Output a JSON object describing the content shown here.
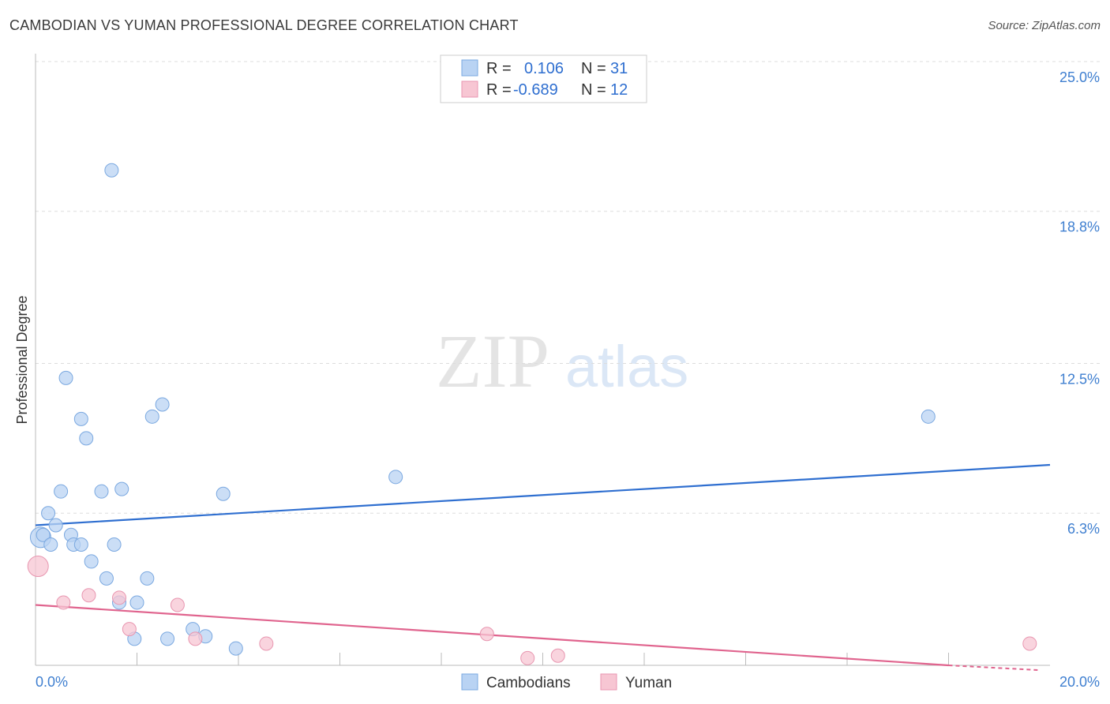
{
  "title": "CAMBODIAN VS YUMAN PROFESSIONAL DEGREE CORRELATION CHART",
  "source": "Source: ZipAtlas.com",
  "watermark": {
    "zip": "ZIP",
    "atlas": "atlas"
  },
  "colors": {
    "blue_fill": "#b9d3f3",
    "blue_stroke": "#7aa8e0",
    "blue_line": "#2f6fd0",
    "pink_fill": "#f7c6d3",
    "pink_stroke": "#e896b0",
    "pink_line": "#e0648e",
    "grid": "#dddddd",
    "tick_text": "#3f7fd0"
  },
  "legend": {
    "rows": [
      {
        "r_label": "R =",
        "r_value": "0.106",
        "n_label": "N =",
        "n_value": "31"
      },
      {
        "r_label": "R =",
        "r_value": "-0.689",
        "n_label": "N =",
        "n_value": "12"
      }
    ],
    "position": "top-center"
  },
  "bottom_legend": [
    "Cambodians",
    "Yuman"
  ],
  "chart_data": {
    "type": "scatter",
    "title": "CAMBODIAN VS YUMAN PROFESSIONAL DEGREE CORRELATION CHART",
    "xlabel": "",
    "ylabel": "Professional Degree",
    "xlim": [
      0,
      20
    ],
    "ylim": [
      0,
      25
    ],
    "x_tick_labels": [
      "0.0%",
      "20.0%"
    ],
    "y_ticks": [
      6.3,
      12.5,
      18.8,
      25.0
    ],
    "y_tick_labels": [
      "6.3%",
      "12.5%",
      "18.8%",
      "25.0%"
    ],
    "grid": true,
    "series": [
      {
        "name": "Cambodians",
        "color": "#b9d3f3",
        "points": [
          [
            1.5,
            20.5
          ],
          [
            0.6,
            11.9
          ],
          [
            0.9,
            10.2
          ],
          [
            1.0,
            9.4
          ],
          [
            2.5,
            10.8
          ],
          [
            2.3,
            10.3
          ],
          [
            0.5,
            7.2
          ],
          [
            1.3,
            7.2
          ],
          [
            1.7,
            7.3
          ],
          [
            3.7,
            7.1
          ],
          [
            7.1,
            7.8
          ],
          [
            17.6,
            10.3
          ],
          [
            0.25,
            6.3
          ],
          [
            0.4,
            5.8
          ],
          [
            0.1,
            5.3
          ],
          [
            0.15,
            5.4
          ],
          [
            0.3,
            5.0
          ],
          [
            0.7,
            5.4
          ],
          [
            0.75,
            5.0
          ],
          [
            0.9,
            5.0
          ],
          [
            1.55,
            5.0
          ],
          [
            1.1,
            4.3
          ],
          [
            1.4,
            3.6
          ],
          [
            2.2,
            3.6
          ],
          [
            1.65,
            2.6
          ],
          [
            2.0,
            2.6
          ],
          [
            1.95,
            1.1
          ],
          [
            2.6,
            1.1
          ],
          [
            3.1,
            1.5
          ],
          [
            3.35,
            1.2
          ],
          [
            3.95,
            0.7
          ]
        ],
        "trend": {
          "x": [
            0,
            20
          ],
          "y": [
            5.8,
            8.3
          ]
        }
      },
      {
        "name": "Yuman",
        "color": "#f7c6d3",
        "points": [
          [
            0.05,
            4.1
          ],
          [
            0.55,
            2.6
          ],
          [
            1.05,
            2.9
          ],
          [
            1.65,
            2.8
          ],
          [
            2.8,
            2.5
          ],
          [
            1.85,
            1.5
          ],
          [
            3.15,
            1.1
          ],
          [
            4.55,
            0.9
          ],
          [
            8.9,
            1.3
          ],
          [
            9.7,
            0.3
          ],
          [
            10.3,
            0.4
          ],
          [
            19.6,
            0.9
          ]
        ],
        "trend": {
          "x": [
            0,
            18.0
          ],
          "y": [
            2.5,
            0.0
          ]
        }
      }
    ]
  }
}
